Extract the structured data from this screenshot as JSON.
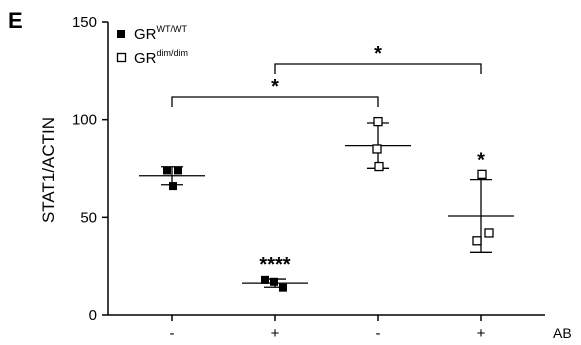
{
  "chart_data": {
    "type": "scatter",
    "panel_label": "E",
    "ylabel": "STAT1/ACTIN",
    "xlabel": "AB",
    "ylim": [
      0,
      150
    ],
    "yticks": [
      0,
      50,
      100,
      150
    ],
    "categories": [
      "-",
      "+",
      "-",
      "+"
    ],
    "legend": {
      "position": "top-left",
      "entries": [
        {
          "name": "GR",
          "superscript": "WT/WT",
          "marker": "filled-square"
        },
        {
          "name": "GR",
          "superscript": "dim/dim",
          "marker": "open-square"
        }
      ]
    },
    "series": [
      {
        "name": "GR WT/WT",
        "marker": "filled-square",
        "groups": [
          {
            "category_index": 0,
            "points": [
              74,
              74,
              66
            ],
            "mean": 71.3,
            "sd": 4.6
          },
          {
            "category_index": 1,
            "points": [
              18,
              14,
              17
            ],
            "mean": 16.3,
            "sd": 2.1
          }
        ]
      },
      {
        "name": "GR dim/dim",
        "marker": "open-square",
        "groups": [
          {
            "category_index": 2,
            "points": [
              99,
              85,
              76
            ],
            "mean": 86.7,
            "sd": 11.6
          },
          {
            "category_index": 3,
            "points": [
              72,
              42,
              38
            ],
            "mean": 50.7,
            "sd": 18.6
          }
        ]
      }
    ],
    "annotations": [
      {
        "text": "****",
        "category_index": 1,
        "type": "label"
      },
      {
        "text": "*",
        "category_index": 3,
        "type": "label"
      },
      {
        "text": "*",
        "from_index": 0,
        "to_index": 2,
        "type": "bracket"
      },
      {
        "text": "*",
        "from_index": 1,
        "to_index": 3,
        "type": "bracket"
      }
    ],
    "grid": false
  }
}
